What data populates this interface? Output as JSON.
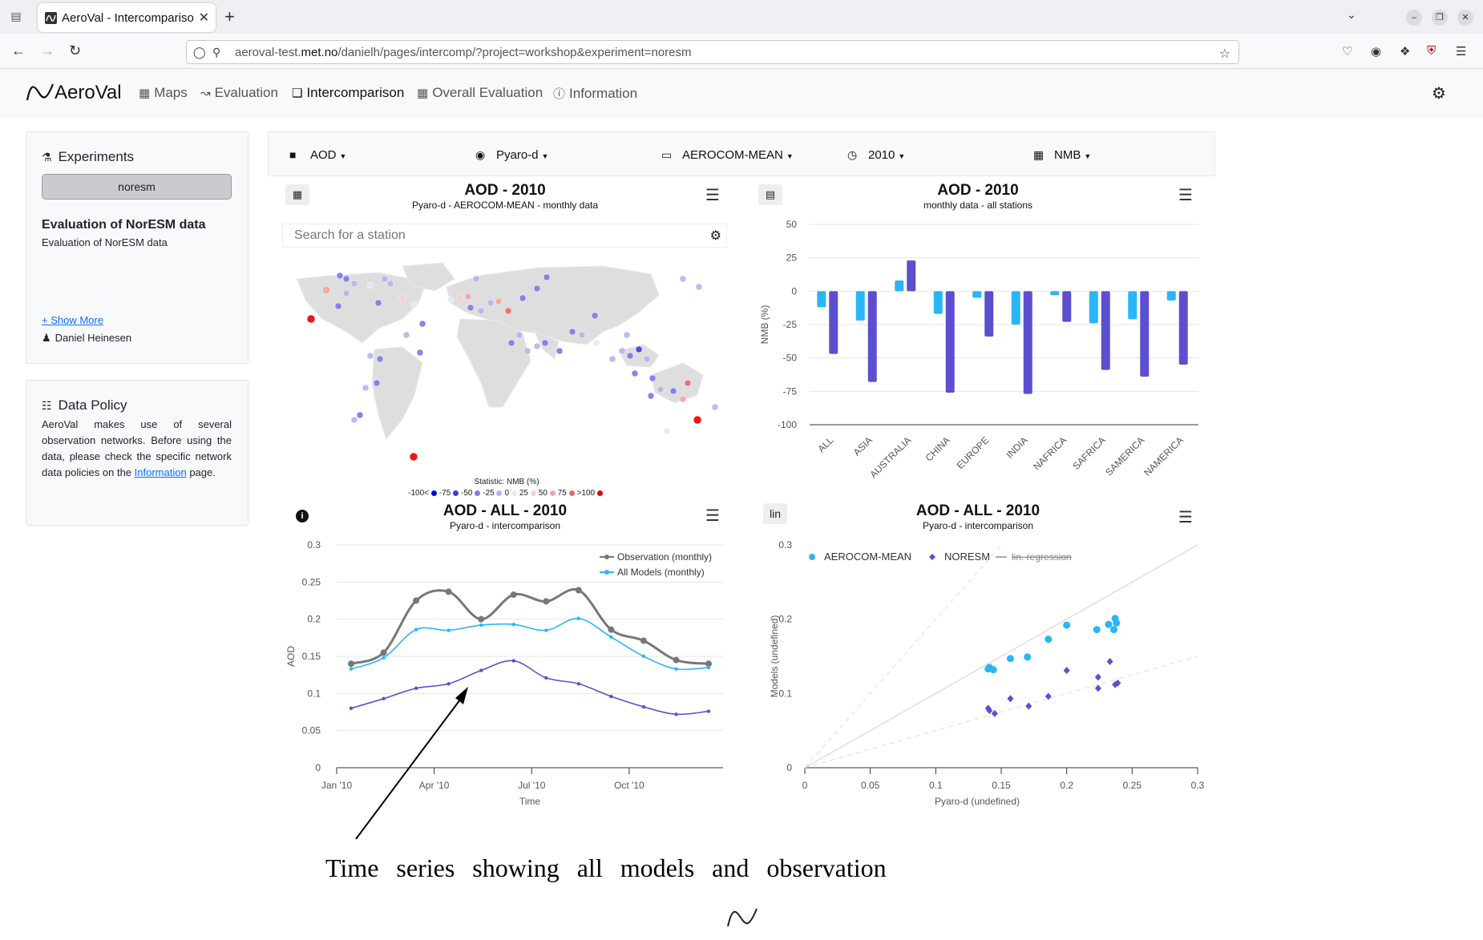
{
  "browser": {
    "tab_title": "AeroVal - Intercompariso",
    "url_host_prefix": "aeroval-test.",
    "url_host_main": "met.no",
    "url_path": "/danielh/pages/intercomp/?project=workshop&experiment=noresm"
  },
  "header": {
    "logo": "AeroVal",
    "menu": [
      {
        "label": "Maps",
        "icon": "map-icon"
      },
      {
        "label": "Evaluation",
        "icon": "line-chart-icon"
      },
      {
        "label": "Intercomparison",
        "icon": "clone-icon"
      },
      {
        "label": "Overall Evaluation",
        "icon": "table-icon"
      },
      {
        "label": "Information",
        "icon": "info-icon"
      }
    ]
  },
  "sidebar": {
    "experiments_title": "Experiments",
    "experiment_pill": "noresm",
    "eval_title": "Evaluation of NorESM data",
    "eval_desc": "Evaluation of NorESM data",
    "show_more": "+ Show More",
    "author": "Daniel Heinesen",
    "policy_title": "Data Policy",
    "policy_text": "AeroVal makes use of several observation networks. Before using the data, please check the specific network data policies on the",
    "policy_link": "Information",
    "policy_end": "page."
  },
  "filters": [
    {
      "label": "AOD",
      "icon": "folder-icon"
    },
    {
      "label": "Pyaro-d",
      "icon": "eye-icon"
    },
    {
      "label": "AEROCOM-MEAN",
      "icon": "laptop-icon"
    },
    {
      "label": "2010",
      "icon": "clock-icon"
    },
    {
      "label": "NMB",
      "icon": "calculator-icon"
    }
  ],
  "map_panel": {
    "title": "AOD - 2010",
    "subtitle": "Pyaro-d - AEROCOM-MEAN - monthly data",
    "search_placeholder": "Search for a station",
    "legend_title": "Statistic: NMB (%)",
    "legend_items": [
      "-100<",
      "-75",
      "-50",
      "-25",
      "0",
      "25",
      "50",
      "75",
      ">100"
    ],
    "legend_colors": [
      "#0000ff",
      "#3a3ae8",
      "#7a7ae8",
      "#b4b4f0",
      "#e8e8f6",
      "#f6d0d0",
      "#f4a6a6",
      "#ee6666",
      "#e60000"
    ]
  },
  "bar_panel": {
    "title": "AOD - 2010",
    "subtitle": "monthly data - all stations",
    "ylabel": "NMB (%)"
  },
  "ts_panel": {
    "title": "AOD - ALL - 2010",
    "subtitle": "Pyaro-d - intercomparison",
    "ylabel": "AOD",
    "xlabel": "Time",
    "info_button": "i"
  },
  "scatter_panel": {
    "title": "AOD - ALL - 2010",
    "subtitle": "Pyaro-d - intercomparison",
    "ylabel": "Models (undefined)",
    "xlabel": "Pyaro-d (undefined)",
    "scale_button": "lin"
  },
  "annotation": "Time series showing all models and observation",
  "chart_data": [
    {
      "type": "bar",
      "categories": [
        "ALL",
        "ASIA",
        "AUSTRALIA",
        "CHINA",
        "EUROPE",
        "INDIA",
        "NAFRICA",
        "SAFRICA",
        "SAMERICA",
        "NAMERICA"
      ],
      "series": [
        {
          "values": [
            -12,
            -22,
            8,
            -17,
            -5,
            -25,
            -3,
            -24,
            -21,
            -7
          ],
          "color": "#29b6f6"
        },
        {
          "values": [
            -47,
            -68,
            23,
            -76,
            -34,
            -77,
            -23,
            -59,
            -64,
            -55
          ],
          "color": "#5c4fcf"
        }
      ],
      "ylim": [
        -100,
        50
      ],
      "yticks": [
        50,
        25,
        0,
        -25,
        -50,
        -75,
        -100
      ],
      "ylabel": "NMB (%)",
      "grid": true
    },
    {
      "type": "line",
      "x": [
        "Jan",
        "Feb",
        "Mar",
        "Apr",
        "May",
        "Jun",
        "Jul",
        "Aug",
        "Sep",
        "Oct",
        "Nov",
        "Dec"
      ],
      "xticks": [
        "Jan '10",
        "Apr '10",
        "Jul '10",
        "Oct '10"
      ],
      "series": [
        {
          "name": "Observation (monthly)",
          "values": [
            0.14,
            0.155,
            0.225,
            0.237,
            0.2,
            0.233,
            0.224,
            0.239,
            0.186,
            0.171,
            0.145,
            0.14
          ],
          "color": "#777777"
        },
        {
          "name": "All Models (monthly)",
          "values": [
            0.133,
            0.148,
            0.186,
            0.185,
            0.192,
            0.193,
            0.185,
            0.201,
            0.176,
            0.15,
            0.133,
            0.135
          ],
          "color": "#29b6f6"
        },
        {
          "values": [
            0.08,
            0.093,
            0.107,
            0.113,
            0.131,
            0.144,
            0.121,
            0.113,
            0.096,
            0.082,
            0.072,
            0.076
          ],
          "color": "#5c4fcf"
        }
      ],
      "ylim": [
        0,
        0.3
      ],
      "yticks": [
        "0",
        "0.05",
        "0.1",
        "0.15",
        "0.2",
        "0.25",
        "0.3"
      ],
      "ylabel": "AOD",
      "xlabel": "Time",
      "legend": "top-right",
      "grid": true
    },
    {
      "type": "scatter",
      "series": [
        {
          "name": "AEROCOM-MEAN",
          "color": "#29b6f6",
          "points": [
            [
              0.14,
              0.133
            ],
            [
              0.141,
              0.135
            ],
            [
              0.144,
              0.132
            ],
            [
              0.157,
              0.147
            ],
            [
              0.17,
              0.149
            ],
            [
              0.186,
              0.173
            ],
            [
              0.2,
              0.192
            ],
            [
              0.223,
              0.186
            ],
            [
              0.232,
              0.193
            ],
            [
              0.236,
              0.186
            ],
            [
              0.237,
              0.201
            ],
            [
              0.238,
              0.195
            ]
          ]
        },
        {
          "name": "NORESM",
          "color": "#5c4fcf",
          "points": [
            [
              0.14,
              0.08
            ],
            [
              0.141,
              0.077
            ],
            [
              0.145,
              0.073
            ],
            [
              0.157,
              0.093
            ],
            [
              0.171,
              0.083
            ],
            [
              0.186,
              0.096
            ],
            [
              0.2,
              0.131
            ],
            [
              0.224,
              0.107
            ],
            [
              0.224,
              0.122
            ],
            [
              0.233,
              0.143
            ],
            [
              0.237,
              0.112
            ],
            [
              0.239,
              0.114
            ]
          ]
        }
      ],
      "legend_extra": "lin. regression",
      "xlim": [
        0,
        0.3
      ],
      "ylim": [
        0,
        0.3
      ],
      "xticks": [
        "0",
        "0.05",
        "0.1",
        "0.15",
        "0.2",
        "0.25",
        "0.3"
      ],
      "yticks": [
        "0",
        "0.1",
        "0.2",
        "0.3"
      ],
      "xlabel": "Pyaro-d (undefined)",
      "ylabel": "Models (undefined)",
      "legend": "top-left"
    }
  ]
}
